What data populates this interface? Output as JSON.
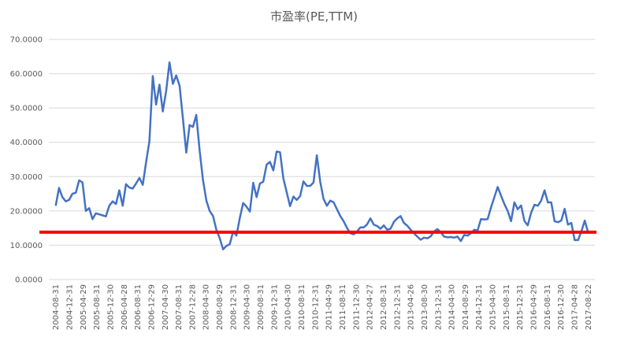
{
  "chart_data": {
    "type": "line",
    "title": "市盈率(PE,TTM)",
    "xlabel": "",
    "ylabel": "",
    "ylim": [
      0,
      70
    ],
    "yticks": [
      "0.0000",
      "10.0000",
      "20.0000",
      "30.0000",
      "40.0000",
      "50.0000",
      "60.0000",
      "70.0000"
    ],
    "ytick_values": [
      0,
      10,
      20,
      30,
      40,
      50,
      60,
      70
    ],
    "grid": true,
    "legend": "none",
    "colors": {
      "line": "#4472C4",
      "reference": "#FF0000",
      "grid": "#D9D9D9",
      "text": "#595959"
    },
    "xticks": [
      "2004-08-31",
      "2004-12-31",
      "2005-04-29",
      "2005-08-31",
      "2005-12-30",
      "2006-04-28",
      "2006-08-31",
      "2006-12-29",
      "2007-04-30",
      "2007-08-31",
      "2007-12-28",
      "2008-04-30",
      "2008-08-29",
      "2008-12-31",
      "2009-04-30",
      "2009-08-31",
      "2009-12-31",
      "2010-04-30",
      "2010-08-31",
      "2010-12-31",
      "2011-04-29",
      "2011-08-31",
      "2011-12-30",
      "2012-04-27",
      "2012-08-31",
      "2012-12-31",
      "2013-04-26",
      "2013-08-30",
      "2013-12-31",
      "2014-04-30",
      "2014-08-29",
      "2014-12-31",
      "2015-04-30",
      "2015-08-31",
      "2015-12-31",
      "2016-04-29",
      "2016-08-31",
      "2016-12-30",
      "2017-04-28",
      "2017-08-22"
    ],
    "series": [
      {
        "values": [
          21.5,
          26.7,
          24.0,
          22.8,
          23.2,
          25.0,
          25.3,
          28.9,
          28.3,
          20.0,
          20.8,
          17.6,
          19.3,
          19.0,
          18.7,
          18.4,
          21.5,
          22.8,
          22.0,
          26.0,
          21.5,
          27.8,
          26.8,
          26.5,
          28.0,
          29.6,
          27.6,
          34.2,
          40.3,
          59.3,
          51.0,
          56.8,
          49.0,
          55.0,
          63.3,
          57.0,
          59.5,
          56.5,
          47.0,
          37.0,
          45.0,
          44.5,
          48.0,
          37.5,
          29.0,
          23.0,
          20.0,
          18.5,
          14.5,
          12.0,
          8.8,
          9.8,
          10.3,
          14.0,
          12.8,
          18.0,
          22.3,
          21.2,
          19.8,
          28.2,
          24.0,
          28.0,
          28.5,
          33.5,
          34.3,
          31.8,
          37.3,
          37.1,
          29.5,
          25.4,
          21.4,
          24.2,
          23.2,
          24.3,
          28.6,
          27.3,
          27.3,
          28.3,
          36.2,
          28.5,
          23.5,
          21.5,
          23.0,
          22.5,
          20.5,
          18.5,
          17.0,
          15.0,
          13.5,
          13.2,
          14.0,
          15.2,
          15.2,
          16.1,
          17.8,
          16.0,
          15.6,
          14.8,
          15.8,
          14.5,
          14.8,
          16.8,
          17.8,
          18.5,
          16.5,
          15.7,
          14.5,
          13.5,
          12.5,
          11.6,
          12.2,
          12.0,
          12.6,
          14.0,
          14.7,
          13.8,
          12.5,
          12.3,
          12.4,
          12.2,
          12.5,
          11.2,
          13.0,
          12.8,
          13.5,
          14.5,
          14.3,
          17.6,
          17.5,
          17.6,
          21.0,
          24.0,
          27.0,
          24.5,
          22.0,
          20.0,
          17.0,
          22.5,
          20.5,
          21.6,
          17.0,
          15.8,
          19.5,
          21.8,
          21.5,
          23.0,
          26.0,
          22.5,
          22.5,
          17.0,
          16.7,
          17.2,
          20.6,
          16.0,
          16.5,
          11.5,
          11.5,
          14.0,
          17.2,
          13.8
        ]
      }
    ],
    "reference_line": {
      "value": 13.8
    }
  }
}
